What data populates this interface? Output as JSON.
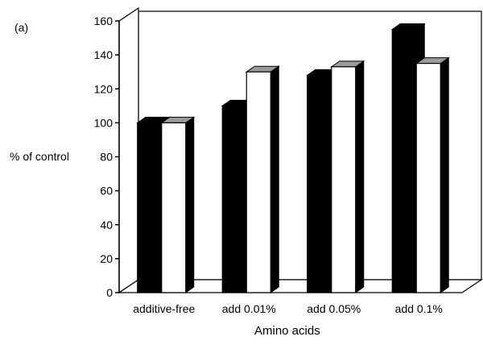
{
  "panel_label": "(a)",
  "chart_data": {
    "type": "bar",
    "title": "",
    "xlabel": "Amino acids",
    "ylabel": "% of control",
    "ylim": [
      0,
      160
    ],
    "yticks": [
      0,
      20,
      40,
      60,
      80,
      100,
      120,
      140,
      160
    ],
    "categories": [
      "additive-free",
      "add 0.01%",
      "add 0.05%",
      "add 0.1%"
    ],
    "series": [
      {
        "color": "#000000",
        "values": [
          100,
          110,
          128,
          155
        ]
      },
      {
        "color": "#ffffff",
        "values": [
          100,
          130,
          133,
          135
        ]
      }
    ],
    "grid": false,
    "legend": "none",
    "style": "3d"
  }
}
